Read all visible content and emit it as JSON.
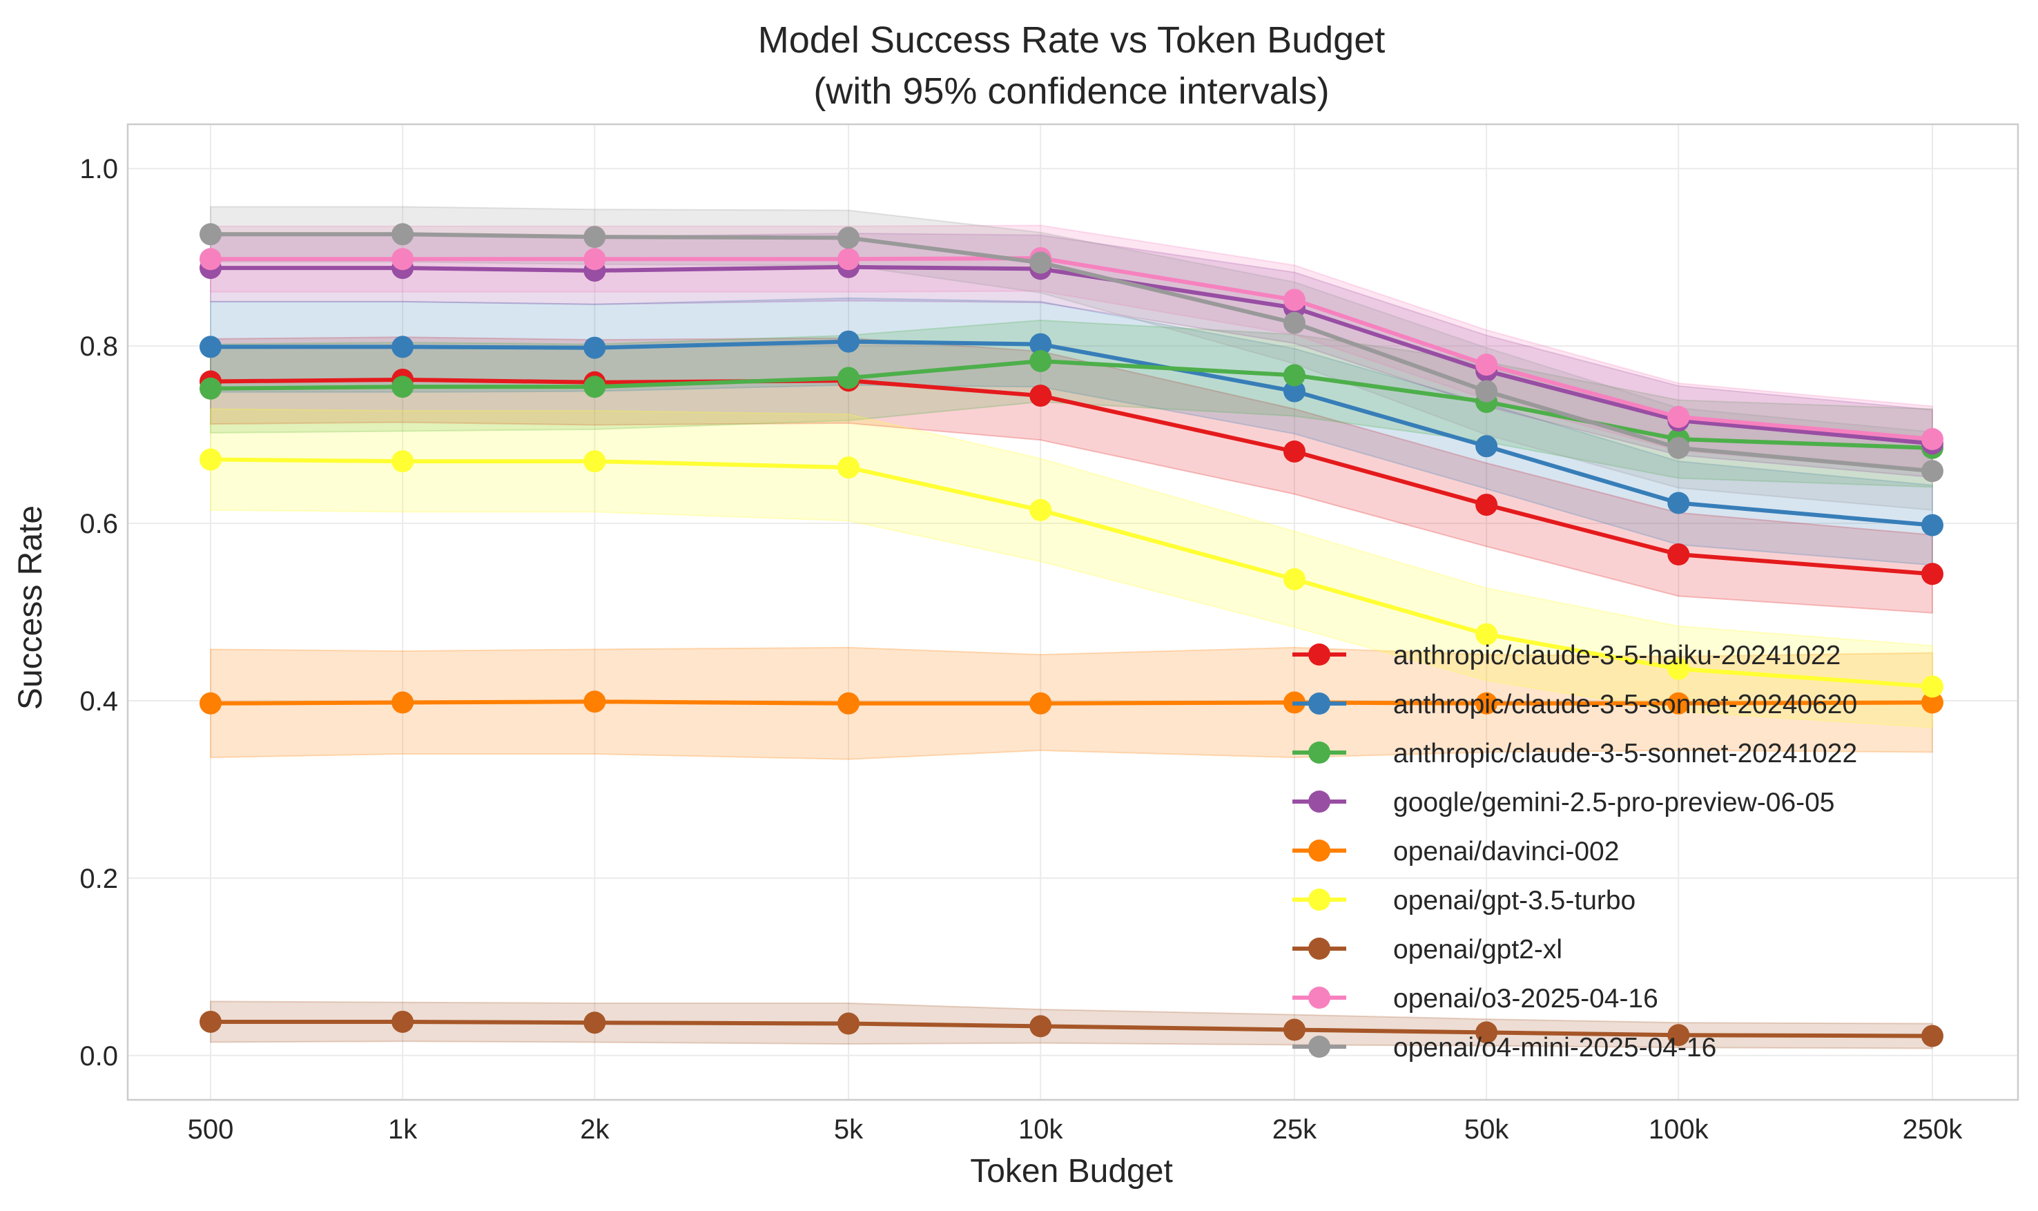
{
  "chart_data": {
    "type": "line",
    "title": "Model Success Rate vs Token Budget",
    "subtitle": "(with 95% confidence intervals)",
    "xlabel": "Token Budget",
    "ylabel": "Success Rate",
    "x_scale": "log",
    "x": [
      500,
      1000,
      2000,
      5000,
      10000,
      25000,
      50000,
      100000,
      250000
    ],
    "x_tick_labels": [
      "500",
      "1k",
      "2k",
      "5k",
      "10k",
      "25k",
      "50k",
      "100k",
      "250k"
    ],
    "ylim": [
      -0.05,
      1.05
    ],
    "y_ticks": [
      "0.0",
      "0.2",
      "0.4",
      "0.6",
      "0.8",
      "1.0"
    ],
    "grid": true,
    "legend_position": "lower-right",
    "series": [
      {
        "name": "anthropic/claude-3-5-haiku-20241022",
        "color": "#e41a1c",
        "values": [
          0.76,
          0.762,
          0.759,
          0.761,
          0.744,
          0.681,
          0.621,
          0.565,
          0.543
        ],
        "ci_lower": [
          0.712,
          0.714,
          0.711,
          0.713,
          0.694,
          0.633,
          0.574,
          0.518,
          0.499
        ],
        "ci_upper": [
          0.808,
          0.81,
          0.807,
          0.809,
          0.794,
          0.729,
          0.668,
          0.612,
          0.587
        ]
      },
      {
        "name": "anthropic/claude-3-5-sonnet-20240620",
        "color": "#377eb8",
        "values": [
          0.799,
          0.799,
          0.798,
          0.805,
          0.802,
          0.749,
          0.687,
          0.623,
          0.598
        ],
        "ci_lower": [
          0.748,
          0.748,
          0.749,
          0.756,
          0.754,
          0.701,
          0.639,
          0.576,
          0.553
        ],
        "ci_upper": [
          0.85,
          0.85,
          0.847,
          0.854,
          0.85,
          0.797,
          0.735,
          0.67,
          0.643
        ]
      },
      {
        "name": "anthropic/claude-3-5-sonnet-20241022",
        "color": "#4daf4a",
        "values": [
          0.752,
          0.754,
          0.754,
          0.764,
          0.783,
          0.767,
          0.737,
          0.695,
          0.685
        ],
        "ci_lower": [
          0.702,
          0.704,
          0.706,
          0.716,
          0.737,
          0.721,
          0.692,
          0.651,
          0.641
        ],
        "ci_upper": [
          0.802,
          0.804,
          0.802,
          0.812,
          0.829,
          0.813,
          0.782,
          0.739,
          0.729
        ]
      },
      {
        "name": "google/gemini-2.5-pro-preview-06-05",
        "color": "#984ea3",
        "values": [
          0.888,
          0.888,
          0.885,
          0.889,
          0.887,
          0.843,
          0.772,
          0.716,
          0.69
        ],
        "ci_lower": [
          0.85,
          0.85,
          0.847,
          0.851,
          0.849,
          0.803,
          0.732,
          0.677,
          0.652
        ],
        "ci_upper": [
          0.926,
          0.926,
          0.923,
          0.927,
          0.925,
          0.883,
          0.812,
          0.755,
          0.728
        ]
      },
      {
        "name": "openai/davinci-002",
        "color": "#ff7f00",
        "values": [
          0.397,
          0.398,
          0.399,
          0.397,
          0.397,
          0.398,
          0.397,
          0.397,
          0.398
        ],
        "ci_lower": [
          0.336,
          0.34,
          0.34,
          0.334,
          0.344,
          0.336,
          0.342,
          0.344,
          0.342
        ],
        "ci_upper": [
          0.458,
          0.456,
          0.458,
          0.46,
          0.452,
          0.46,
          0.452,
          0.45,
          0.454
        ]
      },
      {
        "name": "openai/gpt-3.5-turbo",
        "color": "#ffff33",
        "values": [
          0.672,
          0.67,
          0.67,
          0.663,
          0.615,
          0.537,
          0.475,
          0.436,
          0.416
        ],
        "ci_lower": [
          0.615,
          0.613,
          0.613,
          0.603,
          0.557,
          0.483,
          0.423,
          0.388,
          0.37
        ],
        "ci_upper": [
          0.729,
          0.727,
          0.727,
          0.723,
          0.673,
          0.591,
          0.527,
          0.484,
          0.462
        ]
      },
      {
        "name": "openai/gpt2-xl",
        "color": "#a65628",
        "values": [
          0.038,
          0.038,
          0.037,
          0.036,
          0.033,
          0.029,
          0.026,
          0.023,
          0.022
        ],
        "ci_lower": [
          0.015,
          0.016,
          0.015,
          0.013,
          0.014,
          0.012,
          0.011,
          0.009,
          0.008
        ],
        "ci_upper": [
          0.061,
          0.06,
          0.059,
          0.059,
          0.052,
          0.046,
          0.041,
          0.037,
          0.036
        ]
      },
      {
        "name": "openai/o3-2025-04-16",
        "color": "#f781bf",
        "values": [
          0.898,
          0.898,
          0.898,
          0.898,
          0.899,
          0.852,
          0.779,
          0.72,
          0.695
        ],
        "ci_lower": [
          0.861,
          0.861,
          0.861,
          0.861,
          0.862,
          0.813,
          0.74,
          0.682,
          0.658
        ],
        "ci_upper": [
          0.935,
          0.935,
          0.935,
          0.935,
          0.936,
          0.891,
          0.818,
          0.758,
          0.732
        ]
      },
      {
        "name": "openai/o4-mini-2025-04-16",
        "color": "#999999",
        "values": [
          0.926,
          0.926,
          0.923,
          0.922,
          0.894,
          0.826,
          0.749,
          0.685,
          0.659
        ],
        "ci_lower": [
          0.895,
          0.895,
          0.892,
          0.891,
          0.86,
          0.78,
          0.7,
          0.64,
          0.615
        ],
        "ci_upper": [
          0.957,
          0.957,
          0.954,
          0.953,
          0.928,
          0.872,
          0.798,
          0.73,
          0.703
        ]
      }
    ]
  }
}
